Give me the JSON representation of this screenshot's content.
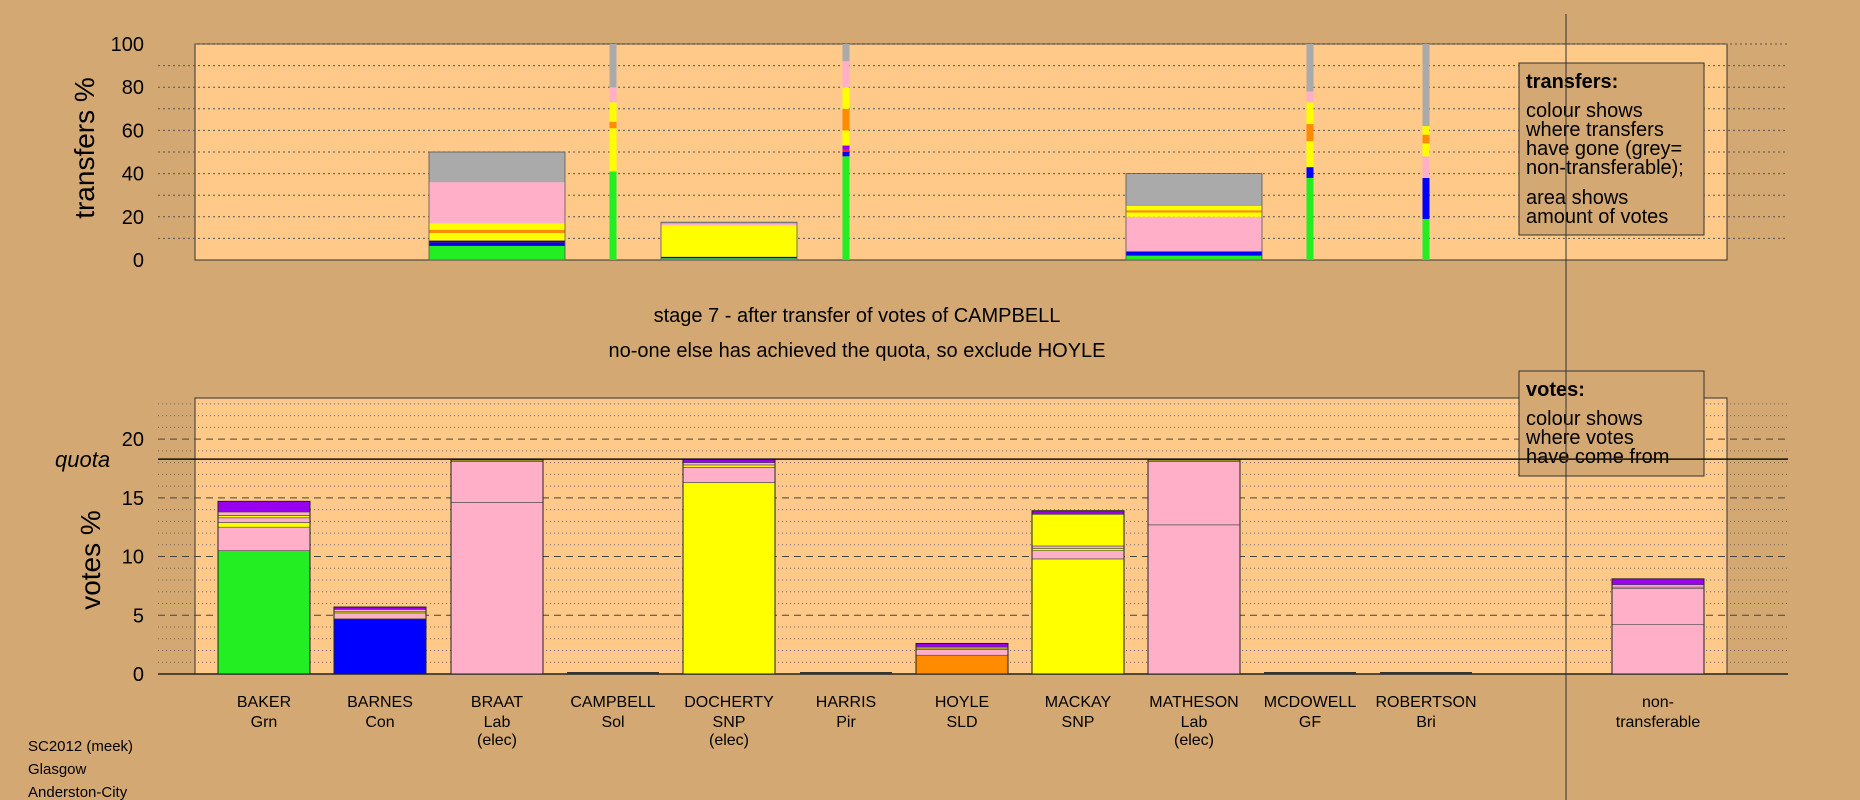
{
  "chart_data": {
    "type": "bar",
    "stage_line1": "stage 7 - after transfer of votes of CAMPBELL",
    "stage_line2": "no-one else has achieved the quota, so exclude HOYLE",
    "footer": [
      "SC2012 (meek)",
      "Glasgow",
      "Anderston-City"
    ],
    "colors": {
      "Grn": "#22ee22",
      "Con": "#0000ff",
      "Lab": "#ffb0c8",
      "SNP": "#ffff00",
      "SLD": "#ff8c00",
      "Sol": "#ff2020",
      "Pir": "#8800aa",
      "GF": "#aa00ff",
      "Bri": "#220088",
      "nt": "#aaaaaa",
      "purple": "#9900ee",
      "background": "#d4a872",
      "plot": "#ffc98a"
    },
    "candidates": [
      {
        "name": "BAKER",
        "party": "Grn",
        "elec": ""
      },
      {
        "name": "BARNES",
        "party": "Con",
        "elec": ""
      },
      {
        "name": "BRAAT",
        "party": "Lab",
        "elec": "(elec)"
      },
      {
        "name": "CAMPBELL",
        "party": "Sol",
        "elec": ""
      },
      {
        "name": "DOCHERTY",
        "party": "SNP",
        "elec": "(elec)"
      },
      {
        "name": "HARRIS",
        "party": "Pir",
        "elec": ""
      },
      {
        "name": "HOYLE",
        "party": "SLD",
        "elec": ""
      },
      {
        "name": "MACKAY",
        "party": "SNP",
        "elec": ""
      },
      {
        "name": "MATHESON",
        "party": "Lab",
        "elec": "(elec)"
      },
      {
        "name": "MCDOWELL",
        "party": "GF",
        "elec": ""
      },
      {
        "name": "ROBERTSON",
        "party": "Bri",
        "elec": ""
      }
    ],
    "nontransferable_label": [
      "non-",
      "transferable"
    ],
    "transfers": {
      "ylabel": "transfers %",
      "ylim": [
        0,
        100
      ],
      "yticks": [
        0,
        20,
        40,
        60,
        80,
        100
      ],
      "legend": {
        "title": "transfers:",
        "lines": [
          "colour shows",
          "where transfers",
          "have gone (grey=",
          "non-transferable);",
          "area shows",
          "amount of votes"
        ]
      },
      "bars": [
        {
          "candidate": "BRAAT",
          "width": "wide",
          "segments": [
            {
              "party": "Grn",
              "value": 6.5
            },
            {
              "party": "Con",
              "value": 1.5
            },
            {
              "party": "Bri",
              "value": 1.0
            },
            {
              "party": "SNP",
              "value": 3.5
            },
            {
              "party": "SLD",
              "value": 1.5
            },
            {
              "party": "SNP",
              "value": 3.0
            },
            {
              "party": "Lab",
              "value": 19.0
            },
            {
              "party": "nt",
              "value": 14.0
            }
          ]
        },
        {
          "candidate": "CAMPBELL",
          "width": "thin",
          "segments": [
            {
              "party": "Grn",
              "value": 41
            },
            {
              "party": "SNP",
              "value": 20
            },
            {
              "party": "SLD",
              "value": 3
            },
            {
              "party": "SNP",
              "value": 9
            },
            {
              "party": "Lab",
              "value": 7
            },
            {
              "party": "nt",
              "value": 20
            }
          ]
        },
        {
          "candidate": "DOCHERTY",
          "width": "wide",
          "segments": [
            {
              "party": "Grn",
              "value": 0.8
            },
            {
              "party": "Con",
              "value": 0.7
            },
            {
              "party": "SNP",
              "value": 14.5
            },
            {
              "party": "Lab",
              "value": 0.8
            },
            {
              "party": "nt",
              "value": 0.7
            }
          ]
        },
        {
          "candidate": "HARRIS",
          "width": "thin",
          "segments": [
            {
              "party": "Grn",
              "value": 48
            },
            {
              "party": "Con",
              "value": 2
            },
            {
              "party": "Sol",
              "value": 1
            },
            {
              "party": "purple",
              "value": 2
            },
            {
              "party": "SNP",
              "value": 7
            },
            {
              "party": "SLD",
              "value": 10
            },
            {
              "party": "SNP",
              "value": 10
            },
            {
              "party": "Lab",
              "value": 12
            },
            {
              "party": "nt",
              "value": 8
            }
          ]
        },
        {
          "candidate": "MATHESON",
          "width": "wide",
          "segments": [
            {
              "party": "Grn",
              "value": 2
            },
            {
              "party": "Con",
              "value": 2
            },
            {
              "party": "Lab",
              "value": 16
            },
            {
              "party": "SNP",
              "value": 2
            },
            {
              "party": "SLD",
              "value": 1
            },
            {
              "party": "SNP",
              "value": 2
            },
            {
              "party": "nt",
              "value": 15
            }
          ]
        },
        {
          "candidate": "MCDOWELL",
          "width": "thin",
          "segments": [
            {
              "party": "Grn",
              "value": 38
            },
            {
              "party": "Con",
              "value": 5
            },
            {
              "party": "SNP",
              "value": 12
            },
            {
              "party": "SLD",
              "value": 8
            },
            {
              "party": "SNP",
              "value": 10
            },
            {
              "party": "Lab",
              "value": 5
            },
            {
              "party": "nt",
              "value": 22
            }
          ]
        },
        {
          "candidate": "ROBERTSON",
          "width": "thin",
          "segments": [
            {
              "party": "Grn",
              "value": 19
            },
            {
              "party": "Con",
              "value": 19
            },
            {
              "party": "Lab",
              "value": 10
            },
            {
              "party": "SNP",
              "value": 6
            },
            {
              "party": "SLD",
              "value": 4
            },
            {
              "party": "SNP",
              "value": 4
            },
            {
              "party": "nt",
              "value": 38
            }
          ]
        }
      ]
    },
    "votes": {
      "ylabel": "votes %",
      "ylim": [
        0,
        23.5
      ],
      "yticks": [
        0,
        5,
        10,
        15,
        20
      ],
      "quota": 18.3,
      "quota_label": "quota",
      "legend": {
        "title": "votes:",
        "lines": [
          "colour shows",
          "where votes",
          "have come from"
        ]
      },
      "bars": [
        {
          "candidate": "BAKER",
          "segments": [
            {
              "party": "Grn",
              "value": 10.5
            },
            {
              "party": "Lab",
              "value": 2.0
            },
            {
              "party": "SNP",
              "value": 0.4
            },
            {
              "party": "Lab",
              "value": 0.4
            },
            {
              "party": "SNP",
              "value": 0.2
            },
            {
              "party": "Lab",
              "value": 0.3
            },
            {
              "party": "purple",
              "value": 0.9
            }
          ]
        },
        {
          "candidate": "BARNES",
          "segments": [
            {
              "party": "Con",
              "value": 4.7
            },
            {
              "party": "Lab",
              "value": 0.5
            },
            {
              "party": "SNP",
              "value": 0.1
            },
            {
              "party": "Lab",
              "value": 0.2
            },
            {
              "party": "purple",
              "value": 0.2
            }
          ]
        },
        {
          "candidate": "BRAAT",
          "segments": [
            {
              "party": "Lab",
              "value": 14.6
            },
            {
              "party": "Lab",
              "value": 3.5
            },
            {
              "party": "SNP",
              "value": 0.1
            },
            {
              "party": "purple",
              "value": 0.1
            }
          ]
        },
        {
          "candidate": "CAMPBELL",
          "segments": []
        },
        {
          "candidate": "DOCHERTY",
          "segments": [
            {
              "party": "SNP",
              "value": 16.3
            },
            {
              "party": "Lab",
              "value": 1.3
            },
            {
              "party": "SNP",
              "value": 0.2
            },
            {
              "party": "Lab",
              "value": 0.2
            },
            {
              "party": "purple",
              "value": 0.3
            }
          ]
        },
        {
          "candidate": "HARRIS",
          "segments": []
        },
        {
          "candidate": "HOYLE",
          "segments": [
            {
              "party": "SLD",
              "value": 1.6
            },
            {
              "party": "Lab",
              "value": 0.5
            },
            {
              "party": "SNP",
              "value": 0.1
            },
            {
              "party": "Lab",
              "value": 0.1
            },
            {
              "party": "purple",
              "value": 0.3
            }
          ]
        },
        {
          "candidate": "MACKAY",
          "segments": [
            {
              "party": "SNP",
              "value": 9.8
            },
            {
              "party": "Lab",
              "value": 0.7
            },
            {
              "party": "SNP",
              "value": 0.2
            },
            {
              "party": "Lab",
              "value": 0.2
            },
            {
              "party": "SNP",
              "value": 2.7
            },
            {
              "party": "purple",
              "value": 0.3
            }
          ]
        },
        {
          "candidate": "MATHESON",
          "segments": [
            {
              "party": "Lab",
              "value": 12.7
            },
            {
              "party": "Lab",
              "value": 5.4
            },
            {
              "party": "SNP",
              "value": 0.1
            },
            {
              "party": "purple",
              "value": 0.1
            }
          ]
        },
        {
          "candidate": "MCDOWELL",
          "segments": []
        },
        {
          "candidate": "ROBERTSON",
          "segments": []
        },
        {
          "candidate": "non-transferable",
          "segments": [
            {
              "party": "Lab",
              "value": 4.2
            },
            {
              "party": "Lab",
              "value": 3.1
            },
            {
              "party": "SNP",
              "value": 0.1
            },
            {
              "party": "Lab",
              "value": 0.2
            },
            {
              "party": "purple",
              "value": 0.5
            }
          ]
        }
      ]
    }
  }
}
